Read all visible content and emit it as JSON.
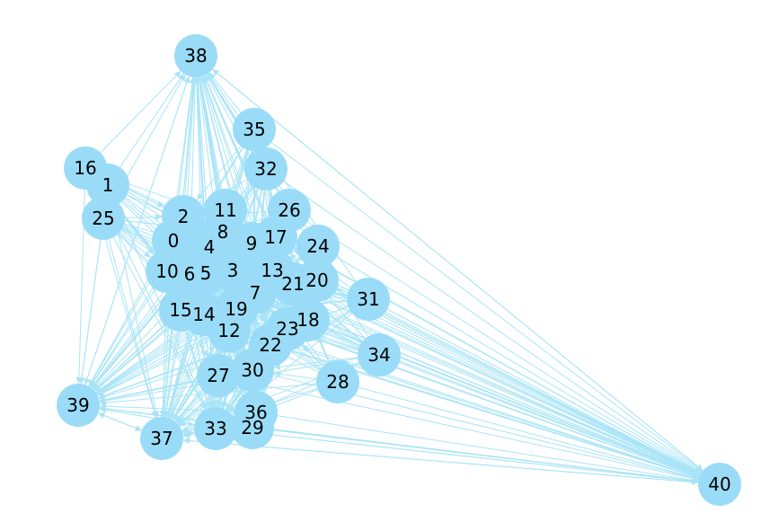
{
  "graph": {
    "node_color": "#9adcf8",
    "edge_color": "#a9e4f7",
    "label_color": "#000000",
    "nodes": [
      "0",
      "1",
      "2",
      "3",
      "4",
      "5",
      "6",
      "7",
      "8",
      "9",
      "10",
      "11",
      "12",
      "13",
      "14",
      "15",
      "16",
      "17",
      "18",
      "19",
      "20",
      "21",
      "22",
      "23",
      "24",
      "25",
      "26",
      "27",
      "28",
      "29",
      "30",
      "31",
      "32",
      "33",
      "34",
      "35",
      "36",
      "37",
      "38",
      "39",
      "40"
    ],
    "hubs": [
      "38",
      "39",
      "40",
      "37",
      "33"
    ],
    "peripheral": [
      "16",
      "25",
      "35",
      "32",
      "26",
      "24",
      "31",
      "34",
      "28",
      "36",
      "29"
    ]
  }
}
